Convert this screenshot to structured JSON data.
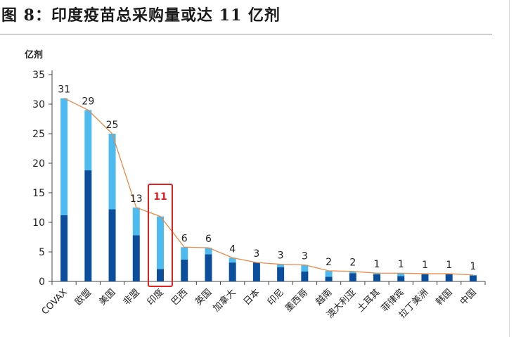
{
  "title": "图 8：印度疫苗总采购量或达 11 亿剂",
  "colors": {
    "dark": "#0b4f9c",
    "light": "#4dbbf0",
    "line": "#e88a4a",
    "highlight": "#e02020"
  },
  "chart_data": {
    "type": "bar",
    "stacked": true,
    "ylabel": "亿剂",
    "ylim": [
      0,
      35
    ],
    "yticks": [
      0,
      5,
      10,
      15,
      20,
      25,
      30,
      35
    ],
    "categories": [
      "COVAX",
      "欧盟",
      "美国",
      "非盟",
      "印度",
      "巴西",
      "英国",
      "加拿大",
      "日本",
      "印尼",
      "墨西哥",
      "越南",
      "澳大利亚",
      "土耳其",
      "菲律宾",
      "拉丁美洲",
      "韩国",
      "中国"
    ],
    "series": [
      {
        "name": "dark",
        "values": [
          11.2,
          18.8,
          12.2,
          7.8,
          2.1,
          3.7,
          4.6,
          3.2,
          3.2,
          2.4,
          1.7,
          0.8,
          1.4,
          1.2,
          0.9,
          1.2,
          1.2,
          1.0
        ]
      },
      {
        "name": "light",
        "values": [
          19.8,
          10.2,
          12.8,
          4.7,
          8.9,
          2.1,
          1.1,
          0.8,
          0.0,
          0.5,
          1.1,
          1.0,
          0.3,
          0.2,
          0.5,
          0.1,
          0.1,
          0.1
        ]
      }
    ],
    "totals": [
      31.0,
      29.0,
      25.0,
      12.5,
      11.0,
      5.8,
      5.7,
      4.0,
      3.2,
      2.9,
      2.8,
      1.8,
      1.7,
      1.4,
      1.4,
      1.3,
      1.3,
      1.1
    ],
    "value_labels": [
      "31",
      "29",
      "25",
      "13",
      "11",
      "6",
      "6",
      "4",
      "3",
      "3",
      "3",
      "2",
      "2",
      "1",
      "1",
      "1",
      "1",
      "1"
    ],
    "highlight_index": 4
  }
}
